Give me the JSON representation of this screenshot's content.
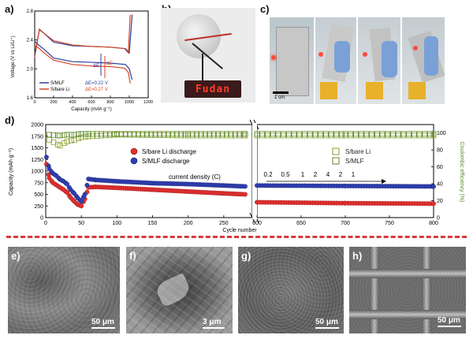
{
  "panels": {
    "a": "a)",
    "b": "b)",
    "c": "c)",
    "d": "d)",
    "e": "e)",
    "f": "f)",
    "g": "g)",
    "h": "h)"
  },
  "panel_a": {
    "y_label": "Voltage (V vs Li/Li⁺)",
    "x_label": "Capacity (mAh g⁻¹)",
    "y_ticks": [
      "1.6",
      "2.0",
      "2.4",
      "2.8"
    ],
    "x_ticks": [
      "0",
      "200",
      "400",
      "600",
      "800",
      "1000",
      "1200"
    ],
    "legend": [
      {
        "name": "S/MLF",
        "note": "ΔE=0.22 V",
        "color": "#2a3f9e"
      },
      {
        "name": "S/bare Li",
        "note": "ΔE=0.27 V",
        "color": "#d8421f"
      }
    ],
    "delta_blue": "ΔE",
    "delta_red": "ΔE"
  },
  "panel_b": {
    "sign_text": "Fudan"
  },
  "panel_c": {
    "scale": "1 cm"
  },
  "panel_d": {
    "y_left_label": "Capacity (mAh g⁻¹)",
    "y_right_label": "Coulombic efficiency (%)",
    "x_label": "Cycle number",
    "y_left_ticks": [
      "0",
      "250",
      "500",
      "750",
      "1000",
      "1250",
      "1500",
      "1750",
      "2000"
    ],
    "y_right_ticks": [
      "0",
      "20",
      "40",
      "60",
      "80",
      "100"
    ],
    "x_ticks_left": [
      "0",
      "50",
      "100",
      "150",
      "200",
      "250"
    ],
    "x_ticks_right": [
      "600",
      "650",
      "700",
      "750",
      "800"
    ],
    "legend_discharge": [
      {
        "name": "S/bare Li discharge",
        "color": "#e23030"
      },
      {
        "name": "S/MLF discharge",
        "color": "#2f3fb0"
      }
    ],
    "legend_ce": [
      {
        "name": "S/bare Li",
        "color": "#8a9e2a"
      },
      {
        "name": "S/MLF",
        "color": "#5d8a2a"
      }
    ],
    "current_density_label": "current density (C)",
    "rates": [
      "0.2",
      "0.5",
      "1",
      "2",
      "4",
      "2",
      "1"
    ]
  },
  "scalebars": {
    "e": "50 μm",
    "f": "3 μm",
    "g": "50 μm",
    "h": "50 μm"
  },
  "colors": {
    "blue": "#2f3fb0",
    "red": "#e23030",
    "olive": "#8a9e2a",
    "green": "#5d8a2a",
    "divider": "#d63a3a"
  },
  "chart_data": [
    {
      "type": "line",
      "xlabel": "Capacity (mAh g⁻¹)",
      "ylabel": "Voltage (V vs Li/Li⁺)",
      "xlim": [
        0,
        1200
      ],
      "ylim": [
        1.6,
        2.8
      ],
      "series": [
        {
          "name": "S/MLF",
          "x": [
            0,
            50,
            100,
            200,
            400,
            600,
            800,
            960,
            1000,
            1030
          ],
          "y": [
            2.38,
            2.32,
            2.27,
            2.15,
            2.1,
            2.09,
            2.08,
            2.06,
            2.0,
            1.85
          ]
        },
        {
          "name": "S/bare Li",
          "x": [
            0,
            50,
            100,
            200,
            400,
            600,
            800,
            950,
            990,
            1010
          ],
          "y": [
            2.32,
            2.28,
            2.22,
            2.12,
            2.06,
            2.04,
            2.03,
            2.01,
            1.95,
            1.8
          ]
        }
      ]
    },
    {
      "type": "scatter",
      "xlabel": "Cycle number",
      "ylabel": "Capacity (mAh g⁻¹)",
      "ylim": [
        0,
        2000
      ],
      "series": [
        {
          "name": "S/MLF discharge",
          "x": [
            1,
            5,
            10,
            15,
            20,
            25,
            30,
            35,
            40,
            45,
            50,
            55,
            60,
            70,
            100,
            150,
            200,
            250,
            280,
            600,
            700,
            800
          ],
          "y": [
            1300,
            1050,
            950,
            900,
            820,
            780,
            720,
            600,
            520,
            420,
            350,
            500,
            830,
            810,
            780,
            740,
            720,
            690,
            670,
            690,
            680,
            670
          ]
        },
        {
          "name": "S/bare Li discharge",
          "x": [
            1,
            5,
            10,
            15,
            20,
            25,
            30,
            35,
            40,
            45,
            50,
            55,
            60,
            70,
            100,
            150,
            200,
            250,
            280,
            600,
            700,
            800
          ],
          "y": [
            1150,
            850,
            750,
            700,
            650,
            600,
            540,
            430,
            350,
            280,
            250,
            400,
            650,
            660,
            640,
            600,
            560,
            520,
            500,
            330,
            310,
            300
          ]
        },
        {
          "name": "S/bare Li",
          "axis": "right",
          "x": [
            5,
            20,
            30,
            40,
            50,
            60,
            100,
            200,
            280,
            600,
            700,
            800
          ],
          "y": [
            92,
            85,
            90,
            92,
            95,
            96,
            98,
            97,
            97,
            97,
            97,
            97
          ]
        },
        {
          "name": "S/MLF",
          "axis": "right",
          "x": [
            5,
            20,
            30,
            40,
            50,
            60,
            100,
            200,
            280,
            600,
            700,
            800
          ],
          "y": [
            98,
            97,
            98,
            98,
            99,
            99,
            99,
            99,
            99,
            99,
            99,
            99
          ]
        }
      ]
    }
  ]
}
